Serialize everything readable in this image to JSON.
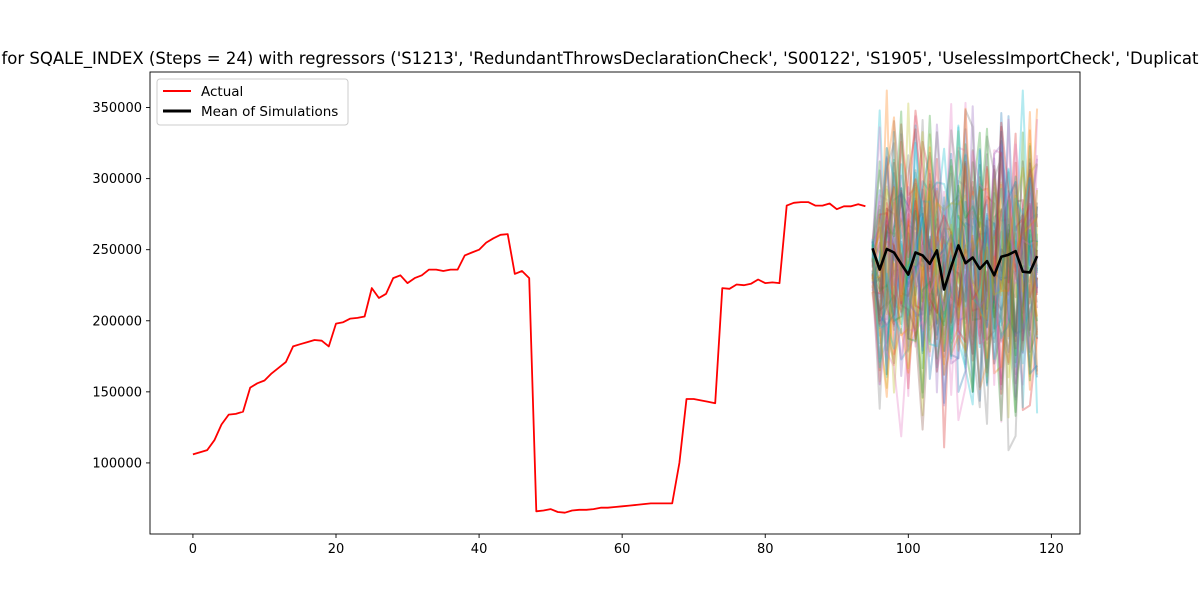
{
  "chart_data": {
    "type": "line",
    "title": "for SQALE_INDEX (Steps = 24) with regressors ('S1213', 'RedundantThrowsDeclarationCheck', 'S00122', 'S1905', 'UselessImportCheck', 'Duplicat",
    "xlabel": "",
    "ylabel": "",
    "xlim": [
      -6,
      124
    ],
    "ylim": [
      50000,
      375000
    ],
    "xticks": [
      0,
      20,
      40,
      60,
      80,
      100,
      120
    ],
    "yticks": [
      100000,
      150000,
      200000,
      250000,
      300000,
      350000
    ],
    "grid": false,
    "legend": {
      "location": "upper left",
      "entries": [
        "Actual",
        "Mean of Simulations"
      ]
    },
    "colors": {
      "actual": "#ff0000",
      "mean": "#000000",
      "simulations": [
        "#1f77b4",
        "#ff7f0e",
        "#2ca02c",
        "#d62728",
        "#9467bd",
        "#8c564b",
        "#e377c2",
        "#7f7f7f",
        "#bcbd22",
        "#17becf"
      ]
    },
    "series": [
      {
        "name": "Actual",
        "x": [
          0,
          1,
          2,
          3,
          4,
          5,
          6,
          7,
          8,
          9,
          10,
          11,
          12,
          13,
          14,
          15,
          16,
          17,
          18,
          19,
          20,
          21,
          22,
          23,
          24,
          25,
          26,
          27,
          28,
          29,
          30,
          31,
          32,
          33,
          34,
          35,
          36,
          37,
          38,
          39,
          40,
          41,
          42,
          43,
          44,
          45,
          46,
          47,
          48,
          49,
          50,
          51,
          52,
          53,
          54,
          55,
          56,
          57,
          58,
          59,
          60,
          61,
          62,
          63,
          64,
          65,
          66,
          67,
          68,
          69,
          70,
          71,
          72,
          73,
          74,
          75,
          76,
          77,
          78,
          79,
          80,
          81,
          82,
          83,
          84,
          85,
          86,
          87,
          88,
          89,
          90,
          91,
          92,
          93,
          94
        ],
        "values": [
          106000,
          107500,
          109000,
          116000,
          127000,
          134000,
          134500,
          136000,
          153000,
          156000,
          158000,
          163000,
          167000,
          171000,
          182000,
          183500,
          185000,
          186500,
          186000,
          182000,
          198000,
          199000,
          201500,
          202000,
          203000,
          223000,
          216000,
          219000,
          230000,
          232000,
          226500,
          230000,
          232000,
          236000,
          236000,
          235000,
          236000,
          236000,
          246000,
          248000,
          250000,
          255000,
          258000,
          260500,
          261000,
          233000,
          235000,
          230000,
          66000,
          66500,
          67500,
          65500,
          65000,
          66500,
          67000,
          67000,
          67500,
          68500,
          68500,
          69000,
          69500,
          70000,
          70500,
          71000,
          71500,
          71500,
          71500,
          71500,
          100000,
          145000,
          145000,
          144000,
          143000,
          142000,
          223000,
          222500,
          225500,
          225000,
          226000,
          229000,
          226500,
          227000,
          226500,
          281000,
          283000,
          283500,
          283500,
          281000,
          281000,
          282500,
          278500,
          280500,
          280500,
          282000,
          280500
        ]
      },
      {
        "name": "Mean of Simulations",
        "x": [
          95,
          96,
          97,
          98,
          99,
          100,
          101,
          102,
          103,
          104,
          105,
          106,
          107,
          108,
          109,
          110,
          111,
          112,
          113,
          114,
          115,
          116,
          117,
          118
        ],
        "values": [
          251000,
          236000,
          250500,
          248000,
          240000,
          232500,
          248000,
          246000,
          240000,
          249500,
          222000,
          238000,
          253000,
          240500,
          244500,
          236500,
          242000,
          232000,
          245000,
          246500,
          249000,
          234500,
          234000,
          245500
        ]
      }
    ],
    "simulations": {
      "x_start": 95,
      "x_end": 118,
      "count": 60,
      "value_range": [
        84000,
        362000
      ],
      "center": 240000
    }
  }
}
